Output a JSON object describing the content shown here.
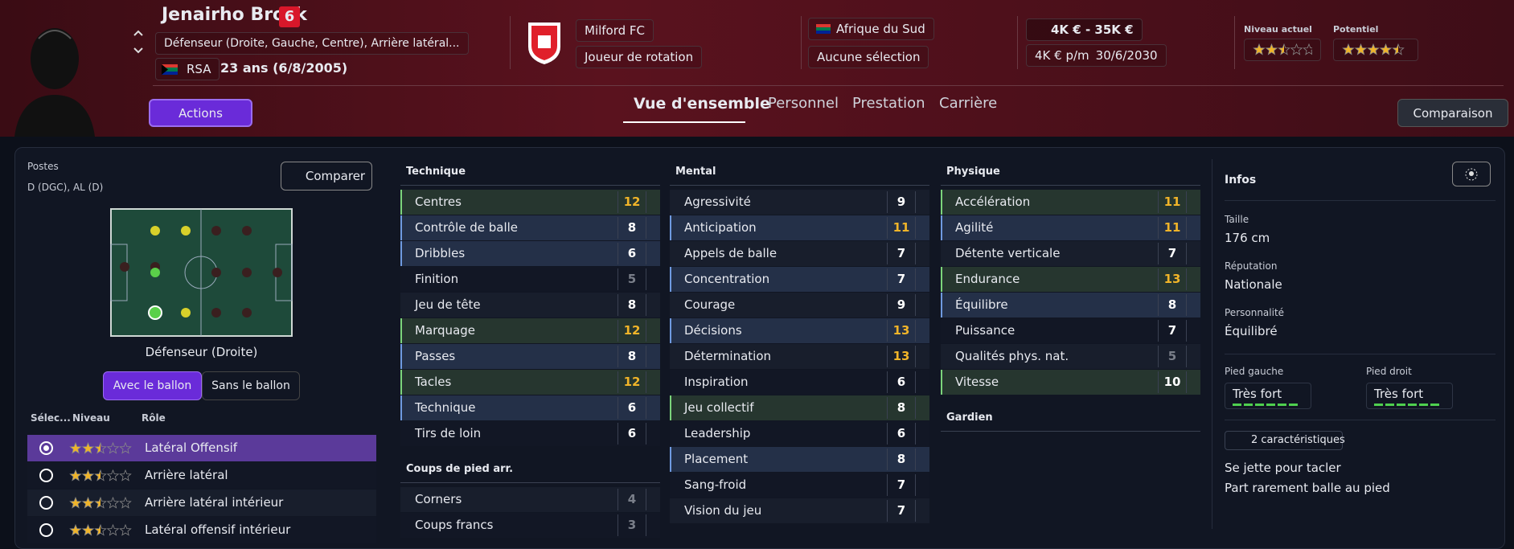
{
  "header": {
    "name": "Jenairho Brock",
    "number": "6",
    "position": "Défenseur (Droite, Gauche, Centre), Arrière latéral...",
    "nation": "RSA",
    "age": "23 ans (6/8/2005)",
    "club": "Milford FC",
    "status": "Joueur de rotation",
    "country": "Afrique du Sud",
    "selection": "Aucune sélection",
    "value": "4K € - 35K €",
    "wage": "4K € p/m",
    "contract": "30/6/2030",
    "current_label": "Niveau actuel",
    "current_stars": 2.5,
    "potential_label": "Potentiel",
    "potential_stars": 4.5,
    "actions": "Actions",
    "compare": "Comparaison"
  },
  "tabs": [
    "Vue d'ensemble",
    "Personnel",
    "Prestation",
    "Carrière"
  ],
  "positions": {
    "label": "Postes",
    "value": "D (DGC), AL (D)",
    "compare": "Comparer",
    "selected": "Défenseur (Droite)",
    "toggles": [
      "Avec le ballon",
      "Sans le ballon"
    ]
  },
  "roles": {
    "headers": [
      "Sélec...",
      "Niveau",
      "Rôle"
    ],
    "rows": [
      {
        "name": "Latéral Offensif",
        "stars": 2.5
      },
      {
        "name": "Arrière latéral",
        "stars": 2.5
      },
      {
        "name": "Arrière latéral intérieur",
        "stars": 2.5
      },
      {
        "name": "Latéral offensif intérieur",
        "stars": 2.5
      }
    ]
  },
  "columns": [
    {
      "groups": [
        {
          "title": "Technique",
          "rows": [
            {
              "name": "Centres",
              "value": 12,
              "highlight": "green"
            },
            {
              "name": "Contrôle de balle",
              "value": 8,
              "highlight": "blue"
            },
            {
              "name": "Dribbles",
              "value": 6,
              "highlight": "blue"
            },
            {
              "name": "Finition",
              "value": 5
            },
            {
              "name": "Jeu de tête",
              "value": 8
            },
            {
              "name": "Marquage",
              "value": 12,
              "highlight": "green"
            },
            {
              "name": "Passes",
              "value": 8,
              "highlight": "blue"
            },
            {
              "name": "Tacles",
              "value": 12,
              "highlight": "green"
            },
            {
              "name": "Technique",
              "value": 6,
              "highlight": "blue"
            },
            {
              "name": "Tirs de loin",
              "value": 6
            }
          ]
        },
        {
          "title": "Coups de pied arr.",
          "rows": [
            {
              "name": "Corners",
              "value": 4
            },
            {
              "name": "Coups francs",
              "value": 3
            }
          ]
        }
      ]
    },
    {
      "groups": [
        {
          "title": "Mental",
          "rows": [
            {
              "name": "Agressivité",
              "value": 9
            },
            {
              "name": "Anticipation",
              "value": 11,
              "highlight": "blue"
            },
            {
              "name": "Appels de balle",
              "value": 7
            },
            {
              "name": "Concentration",
              "value": 7,
              "highlight": "blue"
            },
            {
              "name": "Courage",
              "value": 9
            },
            {
              "name": "Décisions",
              "value": 13,
              "highlight": "blue"
            },
            {
              "name": "Détermination",
              "value": 13
            },
            {
              "name": "Inspiration",
              "value": 6
            },
            {
              "name": "Jeu collectif",
              "value": 8,
              "highlight": "green"
            },
            {
              "name": "Leadership",
              "value": 6
            },
            {
              "name": "Placement",
              "value": 8,
              "highlight": "blue"
            },
            {
              "name": "Sang-froid",
              "value": 7
            },
            {
              "name": "Vision du jeu",
              "value": 7
            }
          ]
        }
      ]
    },
    {
      "groups": [
        {
          "title": "Physique",
          "rows": [
            {
              "name": "Accélération",
              "value": 11,
              "highlight": "green"
            },
            {
              "name": "Agilité",
              "value": 11,
              "highlight": "blue"
            },
            {
              "name": "Détente verticale",
              "value": 7
            },
            {
              "name": "Endurance",
              "value": 13,
              "highlight": "green"
            },
            {
              "name": "Équilibre",
              "value": 8,
              "highlight": "blue"
            },
            {
              "name": "Puissance",
              "value": 7
            },
            {
              "name": "Qualités phys. nat.",
              "value": 5
            },
            {
              "name": "Vitesse",
              "value": 10,
              "highlight": "green"
            }
          ]
        },
        {
          "title": "Gardien",
          "rows": []
        }
      ]
    }
  ],
  "infos": {
    "title": "Infos",
    "fields": [
      {
        "label": "Taille",
        "value": "176 cm"
      },
      {
        "label": "Réputation",
        "value": "Nationale"
      },
      {
        "label": "Personnalité",
        "value": "Équilibré"
      }
    ],
    "feet": [
      {
        "label": "Pied gauche",
        "value": "Très fort"
      },
      {
        "label": "Pied droit",
        "value": "Très fort"
      }
    ],
    "traits_label": "2 caractéristiques",
    "traits": [
      "Se jette pour tacler",
      "Part rarement balle au pied"
    ]
  }
}
